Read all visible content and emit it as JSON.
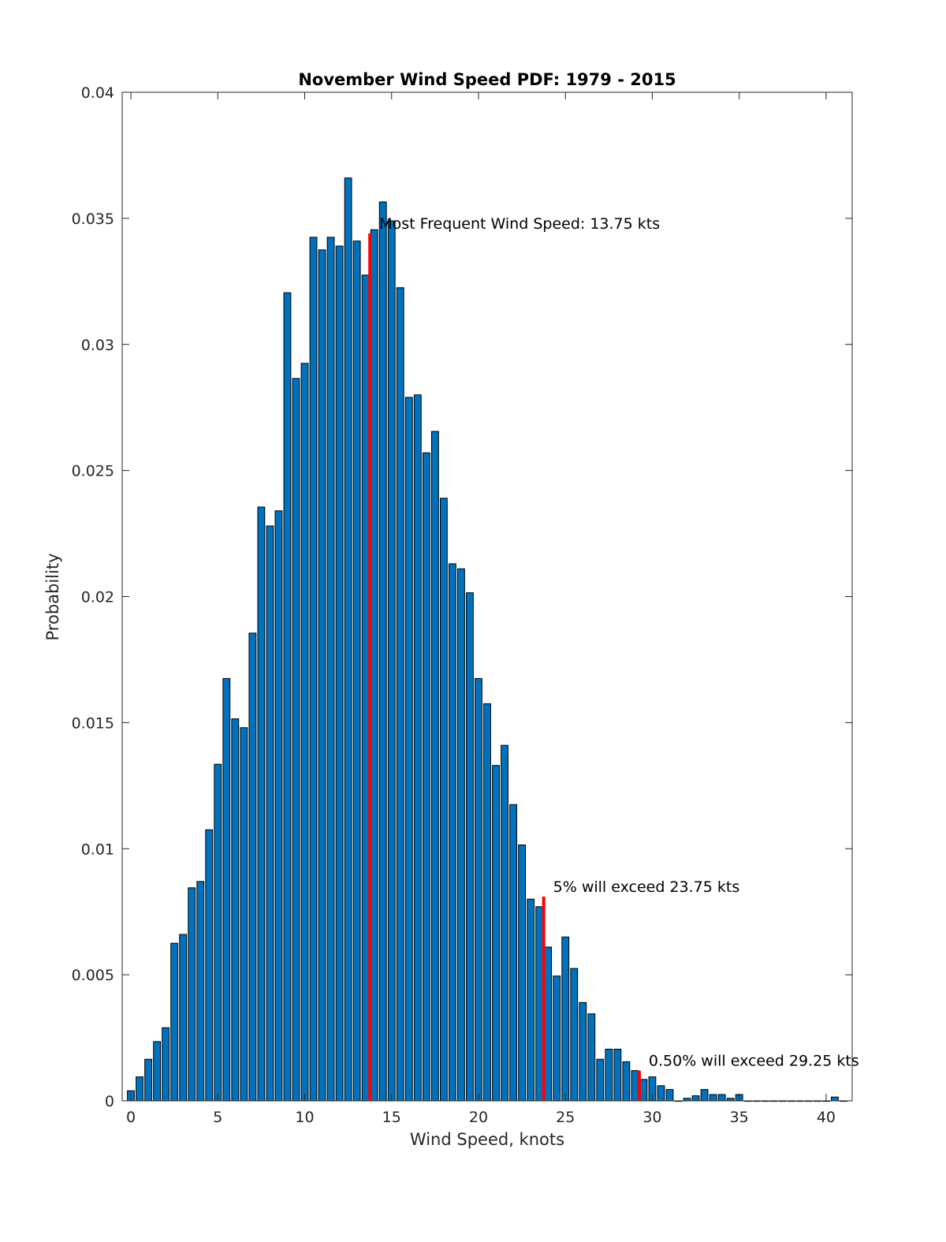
{
  "chart_data": {
    "type": "bar",
    "title": "November Wind Speed PDF: 1979 - 2015",
    "xlabel": "Wind Speed, knots",
    "ylabel": "Probability",
    "xlim": [
      -0.5,
      41.5
    ],
    "ylim": [
      0,
      0.04
    ],
    "xticks": [
      0,
      5,
      10,
      15,
      20,
      25,
      30,
      35,
      40
    ],
    "yticks": [
      0,
      0.005,
      0.01,
      0.015,
      0.02,
      0.025,
      0.03,
      0.035,
      0.04
    ],
    "ytick_labels": [
      "0",
      "0.005",
      "0.01",
      "0.015",
      "0.02",
      "0.025",
      "0.03",
      "0.035",
      "0.04"
    ],
    "bin_width": 0.5,
    "x": [
      0,
      0.5,
      1,
      1.5,
      2,
      2.5,
      3,
      3.5,
      4,
      4.5,
      5,
      5.5,
      6,
      6.5,
      7,
      7.5,
      8,
      8.5,
      9,
      9.5,
      10,
      10.5,
      11,
      11.5,
      12,
      12.5,
      13,
      13.5,
      14,
      14.5,
      15,
      15.5,
      16,
      16.5,
      17,
      17.5,
      18,
      18.5,
      19,
      19.5,
      20,
      20.5,
      21,
      21.5,
      22,
      22.5,
      23,
      23.5,
      24,
      24.5,
      25,
      25.5,
      26,
      26.5,
      27,
      27.5,
      28,
      28.5,
      29,
      29.5,
      30,
      30.5,
      31,
      31.5,
      32,
      32.5,
      33,
      33.5,
      34,
      34.5,
      35,
      35.5,
      36,
      36.5,
      37,
      37.5,
      38,
      38.5,
      39,
      39.5,
      40,
      40.5,
      41
    ],
    "values": [
      0.0004,
      0.00095,
      0.00165,
      0.00235,
      0.0029,
      0.00625,
      0.0066,
      0.00845,
      0.0087,
      0.01075,
      0.01335,
      0.01675,
      0.01515,
      0.0148,
      0.01855,
      0.02355,
      0.0228,
      0.0234,
      0.03205,
      0.02865,
      0.02925,
      0.03425,
      0.03375,
      0.03425,
      0.0339,
      0.0366,
      0.0341,
      0.03275,
      0.03455,
      0.03565,
      0.0349,
      0.03225,
      0.0279,
      0.028,
      0.0257,
      0.02655,
      0.0239,
      0.0213,
      0.0211,
      0.02015,
      0.01675,
      0.01575,
      0.0133,
      0.0141,
      0.01175,
      0.01015,
      0.008,
      0.0077,
      0.0061,
      0.00495,
      0.0065,
      0.00525,
      0.0039,
      0.00345,
      0.00165,
      0.00205,
      0.00205,
      0.00155,
      0.0012,
      0.00085,
      0.00095,
      0.0006,
      0.00045,
      0.0,
      0.0001,
      0.0002,
      0.00045,
      0.00025,
      0.00025,
      0.0001,
      0.00025,
      0.0,
      0.0,
      0.0,
      0.0,
      0.0,
      0.0,
      0.0,
      0.0,
      0.0,
      0.0,
      0.00015,
      0.0
    ],
    "markers": [
      {
        "x": 13.75,
        "y": 0.0344,
        "label": "Most Frequent Wind Speed: 13.75 kts"
      },
      {
        "x": 23.75,
        "y": 0.0081,
        "label": "5% will exceed 23.75 kts"
      },
      {
        "x": 29.25,
        "y": 0.0012,
        "label": "0.50% will exceed 29.25 kts"
      }
    ],
    "marker_color": "#ff0000",
    "bar_color": "#0072bd",
    "grid": false
  }
}
